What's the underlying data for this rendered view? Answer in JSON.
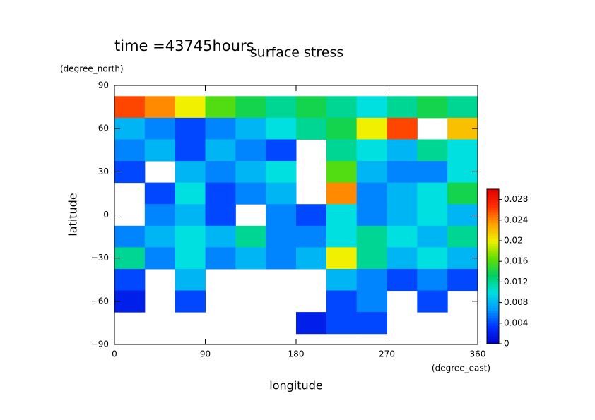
{
  "chart_data": {
    "type": "heatmap",
    "title": "surface stress",
    "subtitle": "time =43745hours",
    "x_label": "longitude",
    "y_label": "latitude",
    "x_unit": "(degree_east)",
    "y_unit": "(degree_north)",
    "x": [
      15,
      45,
      75,
      105,
      135,
      165,
      195,
      225,
      255,
      285,
      315,
      345
    ],
    "y": [
      75,
      60,
      45,
      30,
      15,
      0,
      -15,
      -30,
      -45,
      -60,
      -75
    ],
    "z": [
      [
        0.026,
        0.024,
        0.02,
        0.016,
        0.014,
        0.012,
        0.014,
        0.012,
        0.01,
        0.012,
        0.014,
        0.012
      ],
      [
        0.008,
        0.006,
        0.004,
        0.006,
        0.008,
        0.01,
        0.012,
        0.014,
        0.02,
        0.026,
        null,
        0.022
      ],
      [
        0.006,
        0.008,
        0.004,
        0.008,
        0.006,
        0.004,
        null,
        0.012,
        0.01,
        0.008,
        0.012,
        0.01
      ],
      [
        0.004,
        null,
        0.008,
        0.006,
        0.008,
        0.01,
        null,
        0.016,
        0.008,
        0.006,
        0.006,
        0.01
      ],
      [
        null,
        0.004,
        0.01,
        0.004,
        0.006,
        0.008,
        null,
        0.024,
        0.006,
        0.008,
        0.01,
        0.014
      ],
      [
        null,
        0.006,
        0.008,
        0.004,
        null,
        0.006,
        0.004,
        0.01,
        0.006,
        0.008,
        0.01,
        0.008
      ],
      [
        0.006,
        0.008,
        0.01,
        0.008,
        0.012,
        0.006,
        0.006,
        0.01,
        0.012,
        0.01,
        0.008,
        0.012
      ],
      [
        0.012,
        0.006,
        0.01,
        0.006,
        0.008,
        0.006,
        0.008,
        0.02,
        0.012,
        0.008,
        0.01,
        0.008
      ],
      [
        0.004,
        null,
        0.008,
        null,
        null,
        null,
        null,
        0.008,
        0.006,
        0.004,
        0.006,
        0.004
      ],
      [
        0.002,
        null,
        0.004,
        null,
        null,
        null,
        null,
        0.004,
        0.006,
        null,
        0.004,
        null
      ],
      [
        null,
        null,
        null,
        null,
        null,
        null,
        0.002,
        0.004,
        0.004,
        null,
        null,
        null
      ]
    ],
    "xlim": [
      0,
      360
    ],
    "xticks": [
      0,
      90,
      180,
      270,
      360
    ],
    "ylim": [
      -90,
      90
    ],
    "yticks": [
      {
        "value": -90,
        "label": "−90"
      },
      {
        "value": -60,
        "label": "−60"
      },
      {
        "value": -30,
        "label": "−30"
      },
      0,
      30,
      60,
      90
    ],
    "colorbar_lim": [
      0,
      0.03
    ],
    "colorbar_ticks": [
      0,
      0.004,
      0.008,
      0.012,
      0.016,
      0.02,
      0.024,
      0.028
    ],
    "colormap": [
      "#0000c8",
      "#0033ff",
      "#0099ff",
      "#00e0e0",
      "#00d060",
      "#66e000",
      "#f0f000",
      "#ffa000",
      "#ff3000",
      "#e00000"
    ]
  }
}
